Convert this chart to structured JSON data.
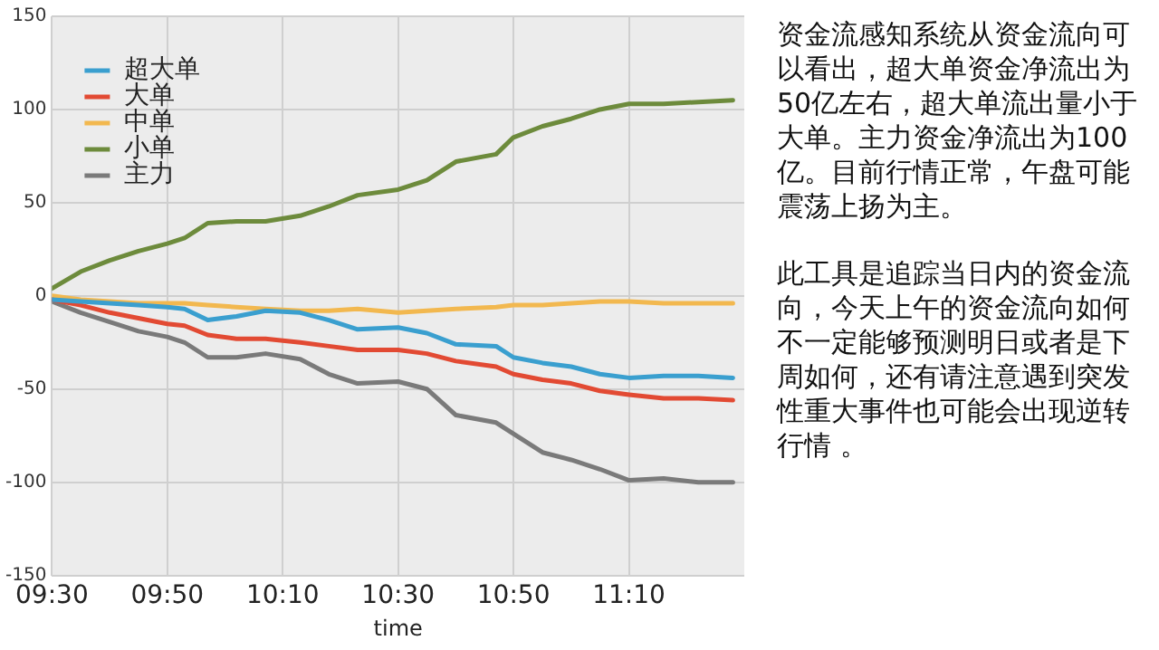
{
  "chart_data": {
    "type": "line",
    "xlabel": "time",
    "legend": "top left",
    "grid": true,
    "marker": "none",
    "line_style": "solid",
    "x": [
      9.5,
      9.583,
      9.667,
      9.75,
      9.833,
      9.883,
      9.95,
      10.033,
      10.117,
      10.217,
      10.3,
      10.383,
      10.5,
      10.583,
      10.667,
      10.783,
      10.833,
      10.917,
      11,
      11.083,
      11.167,
      11.267,
      11.367,
      11.467
    ],
    "xlim": [
      9.5,
      11.5
    ],
    "xticks": [
      {
        "value": 9.5,
        "label": "09:30"
      },
      {
        "value": 9.8333,
        "label": "09:50"
      },
      {
        "value": 10.1667,
        "label": "10:10"
      },
      {
        "value": 10.5,
        "label": "10:30"
      },
      {
        "value": 10.8333,
        "label": "10:50"
      },
      {
        "value": 11.1667,
        "label": "11:10"
      }
    ],
    "ylim": [
      -150,
      150
    ],
    "yticks": [
      -150,
      -100,
      -50,
      0,
      50,
      100,
      150
    ],
    "series": [
      {
        "name": "超大单",
        "color": "#3a9fcf",
        "values": [
          -2,
          -3,
          -4,
          -5,
          -6,
          -7,
          -13,
          -11,
          -8,
          -9,
          -13,
          -18,
          -17,
          -20,
          -26,
          -27,
          -33,
          -36,
          -38,
          -42,
          -44,
          -43,
          -43,
          -44
        ]
      },
      {
        "name": "大单",
        "color": "#e24a33",
        "values": [
          -2,
          -5,
          -9,
          -12,
          -15,
          -16,
          -21,
          -23,
          -23,
          -25,
          -27,
          -29,
          -29,
          -31,
          -35,
          -38,
          -42,
          -45,
          -47,
          -51,
          -53,
          -55,
          -55,
          -56
        ]
      },
      {
        "name": "中单",
        "color": "#f2b84f",
        "values": [
          0,
          -2,
          -3,
          -4,
          -4,
          -4,
          -5,
          -6,
          -7,
          -8,
          -8,
          -7,
          -9,
          -8,
          -7,
          -6,
          -5,
          -5,
          -4,
          -3,
          -3,
          -4,
          -4,
          -4
        ]
      },
      {
        "name": "小单",
        "color": "#6d8b3c",
        "values": [
          4,
          13,
          19,
          24,
          28,
          31,
          39,
          40,
          40,
          43,
          48,
          54,
          57,
          62,
          72,
          76,
          85,
          91,
          95,
          100,
          103,
          103,
          104,
          105
        ]
      },
      {
        "name": "主力",
        "color": "#7a7a7a",
        "values": [
          -3,
          -9,
          -14,
          -19,
          -22,
          -25,
          -33,
          -33,
          -31,
          -34,
          -42,
          -47,
          -46,
          -50,
          -64,
          -68,
          -74,
          -84,
          -88,
          -93,
          -99,
          -98,
          -100,
          -100
        ]
      }
    ],
    "annotations": [
      "资金流感知系统从资金流向可以看出，超大单资金净流出为50亿左右，超大单流出量小于大单。主力资金净流出为100亿。目前行情正常，午盘可能震荡上扬为主。",
      "此工具是追踪当日内的资金流向，今天上午的资金流向如何不一定能够预测明日或者是下周如何，还有请注意遇到突发性重大事件也可能会出现逆转行情 。"
    ]
  }
}
